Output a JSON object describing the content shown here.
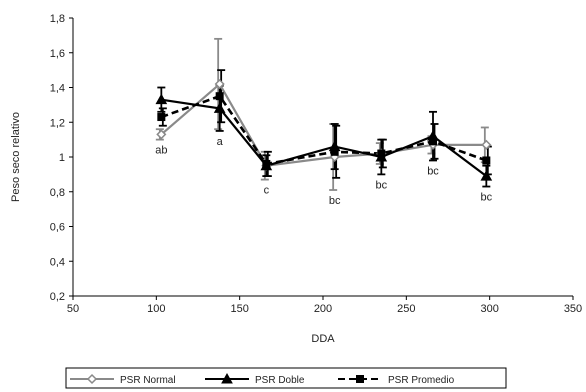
{
  "chart_data": {
    "type": "line",
    "title": "",
    "xlabel": "DDA",
    "ylabel": "Peso seco relativo",
    "xlim": [
      50,
      350
    ],
    "ylim": [
      0.2,
      1.8
    ],
    "x_ticks": [
      "50",
      "100",
      "150",
      "200",
      "250",
      "300",
      "350"
    ],
    "y_ticks": [
      "0,2",
      "0,4",
      "0,6",
      "0,8",
      "1",
      "1,2",
      "1,4",
      "1,6",
      "1,8"
    ],
    "grid": false,
    "legend_position": "bottom",
    "x": [
      103,
      138,
      166,
      207,
      235,
      266,
      298
    ],
    "series": [
      {
        "name": "PSR Normal",
        "marker": "diamond",
        "color": "#8a8a8a",
        "values": [
          1.13,
          1.42,
          0.95,
          1.0,
          1.02,
          1.07,
          1.07
        ],
        "errors": [
          0.03,
          0.26,
          0.08,
          0.19,
          0.06,
          0.05,
          0.1
        ]
      },
      {
        "name": "PSR Doble",
        "marker": "triangle",
        "color": "#000000",
        "values": [
          1.33,
          1.28,
          0.95,
          1.06,
          1.0,
          1.12,
          0.89
        ],
        "errors": [
          0.07,
          0.13,
          0.06,
          0.13,
          0.1,
          0.14,
          0.06
        ]
      },
      {
        "name": "PSR Promedio",
        "marker": "square",
        "color": "#000000",
        "values": [
          1.23,
          1.35,
          0.96,
          1.03,
          1.02,
          1.09,
          0.98
        ],
        "errors": [
          0.05,
          0.15,
          0.07,
          0.15,
          0.08,
          0.1,
          0.08
        ]
      }
    ],
    "annotations": [
      {
        "text": "ab",
        "x": 103
      },
      {
        "text": "a",
        "x": 138
      },
      {
        "text": "c",
        "x": 166
      },
      {
        "text": "bc",
        "x": 207
      },
      {
        "text": "bc",
        "x": 235
      },
      {
        "text": "bc",
        "x": 266
      },
      {
        "text": "bc",
        "x": 298
      }
    ]
  }
}
